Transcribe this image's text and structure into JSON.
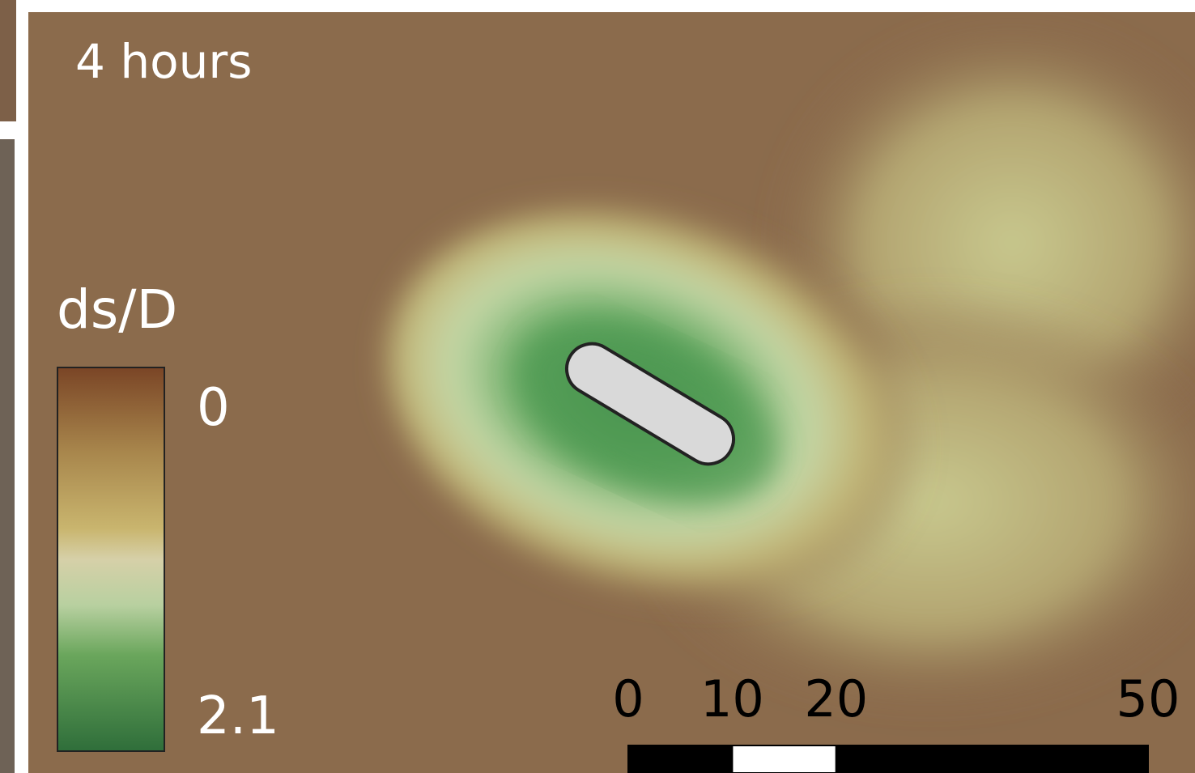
{
  "panel_label": "4 hours",
  "colorbar": {
    "title": "ds/D",
    "top_label": "0",
    "bottom_label": "2.1"
  },
  "scale_bar": {
    "ticks": [
      0,
      10,
      20,
      50
    ]
  }
}
